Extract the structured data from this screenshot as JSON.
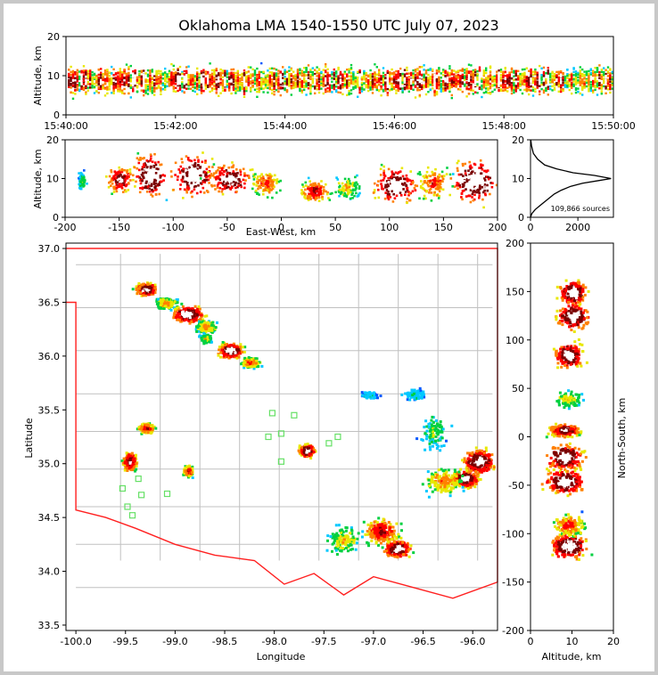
{
  "chart_data": {
    "title": "Oklahoma LMA 1540-1550 UTC July 07, 2023",
    "colors": {
      "low": "#6a00c8",
      "mid1": "#0058ff",
      "mid2": "#00c8ff",
      "mid3": "#00d040",
      "mid4": "#e8e800",
      "high1": "#ff8000",
      "high2": "#ff0000",
      "max": "#7a0000",
      "peak": "#ffffff",
      "state_border": "#ff2020",
      "county": "#c0c0c0"
    },
    "panels": [
      {
        "id": "time-altitude",
        "type": "heatmap",
        "xlabel": "",
        "ylabel": "Altitude, km",
        "x_ticks": [
          "15:40:00",
          "15:42:00",
          "15:44:00",
          "15:46:00",
          "15:48:00",
          "15:50:00"
        ],
        "ylim": [
          0,
          20
        ],
        "y_ticks": [
          0,
          10,
          20
        ]
      },
      {
        "id": "east-west-altitude",
        "type": "heatmap",
        "xlabel": "East-West, km",
        "ylabel": "Altitude, km",
        "xlim": [
          -200,
          200
        ],
        "x_ticks": [
          -200,
          -150,
          -100,
          -50,
          0,
          50,
          100,
          150,
          200
        ],
        "ylim": [
          0,
          20
        ],
        "y_ticks": [
          0,
          10,
          20
        ],
        "clusters": [
          {
            "x": -185,
            "z": 9.5,
            "w": 3,
            "h": 2,
            "i": 0.4
          },
          {
            "x": -150,
            "z": 10,
            "w": 10,
            "h": 3,
            "i": 0.9
          },
          {
            "x": -122,
            "z": 11,
            "w": 14,
            "h": 5,
            "i": 1.0
          },
          {
            "x": -82,
            "z": 11,
            "w": 18,
            "h": 5,
            "i": 1.0
          },
          {
            "x": -48,
            "z": 10,
            "w": 18,
            "h": 3.5,
            "i": 0.95
          },
          {
            "x": -15,
            "z": 9,
            "w": 12,
            "h": 3,
            "i": 0.7
          },
          {
            "x": 30,
            "z": 7,
            "w": 12,
            "h": 2.5,
            "i": 0.8
          },
          {
            "x": 60,
            "z": 8,
            "w": 12,
            "h": 3,
            "i": 0.5
          },
          {
            "x": 105,
            "z": 8.5,
            "w": 18,
            "h": 4,
            "i": 1.0
          },
          {
            "x": 140,
            "z": 9,
            "w": 14,
            "h": 4,
            "i": 0.7
          },
          {
            "x": 178,
            "z": 9.5,
            "w": 20,
            "h": 5,
            "i": 1.0
          }
        ]
      },
      {
        "id": "altitude-histogram",
        "type": "line",
        "xlabel": "",
        "ylabel": "",
        "xlim": [
          0,
          3500
        ],
        "x_ticks": [
          0,
          2000
        ],
        "ylim": [
          0,
          20
        ],
        "y_ticks": [
          0,
          10,
          20
        ],
        "annotation": "109,866 sources",
        "x": [
          0,
          60,
          200,
          400,
          700,
          1000,
          1300,
          1700,
          2200,
          2900,
          3400,
          2700,
          1800,
          1100,
          600,
          300,
          120,
          40,
          10
        ],
        "y": [
          0,
          1,
          2,
          3,
          4.5,
          6,
          7,
          8,
          8.8,
          9.5,
          10,
          10.8,
          11.5,
          12.5,
          13.5,
          15,
          16.5,
          18.5,
          20
        ]
      },
      {
        "id": "plan-view",
        "type": "heatmap",
        "xlabel": "Longitude",
        "ylabel": "Latitude",
        "xlim": [
          -100.1,
          -95.75
        ],
        "x_ticks": [
          -100.0,
          -99.5,
          -99.0,
          -98.5,
          -98.0,
          -97.5,
          -97.0,
          -96.5,
          -96.0
        ],
        "ylim": [
          33.45,
          37.05
        ],
        "y_ticks": [
          33.5,
          34.0,
          34.5,
          35.0,
          35.5,
          36.0,
          36.5,
          37.0
        ],
        "clusters": [
          {
            "lon": -99.3,
            "lat": 36.63,
            "w": 0.09,
            "h": 0.05,
            "i": 1.0
          },
          {
            "lon": -99.1,
            "lat": 36.5,
            "w": 0.1,
            "h": 0.05,
            "i": 0.6
          },
          {
            "lon": -98.88,
            "lat": 36.4,
            "w": 0.14,
            "h": 0.07,
            "i": 1.0
          },
          {
            "lon": -98.7,
            "lat": 36.28,
            "w": 0.09,
            "h": 0.05,
            "i": 0.6
          },
          {
            "lon": -98.45,
            "lat": 36.06,
            "w": 0.11,
            "h": 0.06,
            "i": 1.0
          },
          {
            "lon": -98.25,
            "lat": 35.95,
            "w": 0.08,
            "h": 0.04,
            "i": 0.7
          },
          {
            "lon": -98.7,
            "lat": 36.17,
            "w": 0.05,
            "h": 0.04,
            "i": 0.5
          },
          {
            "lon": -99.3,
            "lat": 35.34,
            "w": 0.07,
            "h": 0.04,
            "i": 0.8
          },
          {
            "lon": -99.47,
            "lat": 35.03,
            "w": 0.06,
            "h": 0.08,
            "i": 0.9
          },
          {
            "lon": -98.88,
            "lat": 34.94,
            "w": 0.04,
            "h": 0.04,
            "i": 0.8
          },
          {
            "lon": -97.68,
            "lat": 35.13,
            "w": 0.07,
            "h": 0.05,
            "i": 1.0
          },
          {
            "lon": -96.93,
            "lat": 34.38,
            "w": 0.15,
            "h": 0.11,
            "i": 0.8
          },
          {
            "lon": -96.77,
            "lat": 34.22,
            "w": 0.12,
            "h": 0.07,
            "i": 1.0
          },
          {
            "lon": -97.3,
            "lat": 34.3,
            "w": 0.15,
            "h": 0.12,
            "i": 0.5
          },
          {
            "lon": -96.08,
            "lat": 34.87,
            "w": 0.11,
            "h": 0.07,
            "i": 1.0
          },
          {
            "lon": -95.95,
            "lat": 35.03,
            "w": 0.14,
            "h": 0.1,
            "i": 1.0
          },
          {
            "lon": -96.3,
            "lat": 34.85,
            "w": 0.18,
            "h": 0.12,
            "i": 0.6
          },
          {
            "lon": -96.4,
            "lat": 35.3,
            "w": 0.12,
            "h": 0.15,
            "i": 0.4
          },
          {
            "lon": -96.6,
            "lat": 35.65,
            "w": 0.1,
            "h": 0.05,
            "i": 0.3
          },
          {
            "lon": -97.05,
            "lat": 35.65,
            "w": 0.08,
            "h": 0.03,
            "i": 0.3
          }
        ],
        "stations": [
          {
            "lon": -98.02,
            "lat": 35.47
          },
          {
            "lon": -97.8,
            "lat": 35.45
          },
          {
            "lon": -98.06,
            "lat": 35.25
          },
          {
            "lon": -97.93,
            "lat": 35.28
          },
          {
            "lon": -97.93,
            "lat": 35.02
          },
          {
            "lon": -97.36,
            "lat": 35.25
          },
          {
            "lon": -97.45,
            "lat": 35.19
          },
          {
            "lon": -99.53,
            "lat": 34.77
          },
          {
            "lon": -99.37,
            "lat": 34.86
          },
          {
            "lon": -99.08,
            "lat": 34.72
          },
          {
            "lon": -99.34,
            "lat": 34.71
          },
          {
            "lon": -99.48,
            "lat": 34.6
          },
          {
            "lon": -99.43,
            "lat": 34.52
          }
        ]
      },
      {
        "id": "altitude-north-south",
        "type": "heatmap",
        "xlabel": "Altitude, km",
        "ylabel": "North-South, km",
        "xlim": [
          0,
          20
        ],
        "x_ticks": [
          0,
          10,
          20
        ],
        "ylim": [
          -200,
          200
        ],
        "y_ticks": [
          -200,
          -150,
          -100,
          -50,
          0,
          50,
          100,
          150,
          200
        ],
        "clusters": [
          {
            "z": 10,
            "y": 150,
            "w": 3,
            "h": 12,
            "i": 1.0
          },
          {
            "z": 10,
            "y": 125,
            "w": 3.5,
            "h": 12,
            "i": 1.0
          },
          {
            "z": 9,
            "y": 85,
            "w": 3,
            "h": 12,
            "i": 1.0
          },
          {
            "z": 9,
            "y": 40,
            "w": 3,
            "h": 8,
            "i": 0.5
          },
          {
            "z": 8,
            "y": 8,
            "w": 3.5,
            "h": 6,
            "i": 0.9
          },
          {
            "z": 8,
            "y": -20,
            "w": 4,
            "h": 12,
            "i": 1.0
          },
          {
            "z": 8,
            "y": -45,
            "w": 4.5,
            "h": 12,
            "i": 1.0
          },
          {
            "z": 9,
            "y": -112,
            "w": 4,
            "h": 12,
            "i": 1.0
          },
          {
            "z": 9,
            "y": -90,
            "w": 3.5,
            "h": 10,
            "i": 0.7
          }
        ]
      }
    ]
  }
}
